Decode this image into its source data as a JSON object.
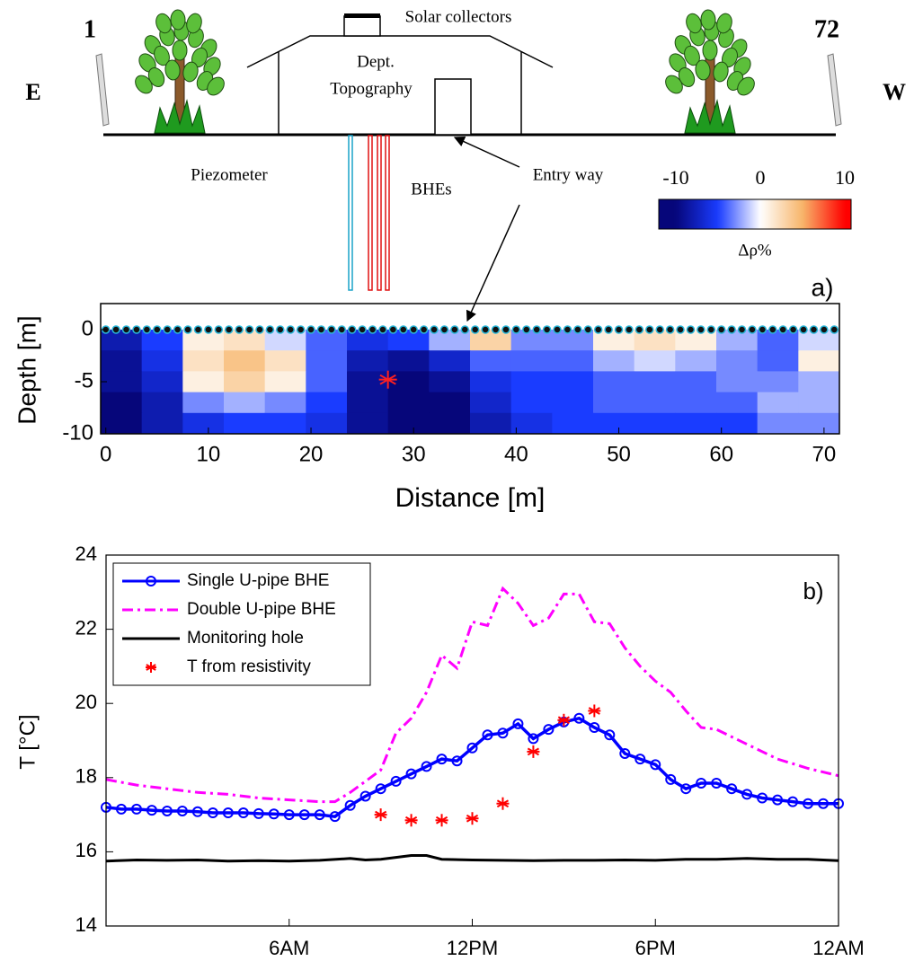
{
  "diagram": {
    "electrodes": [
      1,
      72
    ],
    "directions": [
      "E",
      "W"
    ],
    "solar": "Solar collectors",
    "building": [
      "Dept.",
      "Topography"
    ],
    "piezometer": "Piezometer",
    "bhes": "BHEs",
    "entry": "Entry way"
  },
  "chart_data": [
    {
      "type": "heatmap",
      "panel_label": "a)",
      "xlabel": "Distance [m]",
      "ylabel": "Depth [m]",
      "xlim": [
        -0.5,
        71.5
      ],
      "ylim": [
        -10,
        2.5
      ],
      "xticks": [
        0,
        10,
        20,
        30,
        40,
        50,
        60,
        70
      ],
      "yticks": [
        -10,
        -5,
        0
      ],
      "x_edges": [
        -0.5,
        3.5,
        7.5,
        11.5,
        15.5,
        19.5,
        23.5,
        27.5,
        31.5,
        35.5,
        39.5,
        43.5,
        47.5,
        51.5,
        55.5,
        59.5,
        63.5,
        67.5,
        71.5
      ],
      "y_edges": [
        0,
        -2,
        -4,
        -6,
        -8,
        -10
      ],
      "values": [
        [
          -8,
          -5,
          1,
          2,
          -1,
          -4,
          -6,
          -5,
          -2,
          3,
          -3,
          -3,
          1,
          2,
          1,
          -2,
          -4,
          -1
        ],
        [
          -9,
          -6,
          2,
          4,
          2,
          -4,
          -8,
          -9,
          -7,
          -4,
          -4,
          -4,
          -2,
          -1,
          -2,
          -3,
          -4,
          1
        ],
        [
          -9,
          -7,
          1,
          3,
          1,
          -4,
          -9,
          -10,
          -9,
          -6,
          -5,
          -5,
          -4,
          -4,
          -4,
          -3,
          -3,
          -2
        ],
        [
          -10,
          -8,
          -3,
          -2,
          -3,
          -5,
          -9,
          -10,
          -10,
          -7,
          -5,
          -5,
          -4,
          -4,
          -4,
          -4,
          -2,
          -2
        ],
        [
          -10,
          -8,
          -6,
          -5,
          -5,
          -6,
          -9,
          -10,
          -10,
          -8,
          -6,
          -5,
          -5,
          -5,
          -5,
          -5,
          -3,
          -3
        ]
      ],
      "colorbar": {
        "lim": [
          -10,
          10
        ],
        "ticks": [
          -10,
          0,
          10
        ],
        "label": "Δρ%",
        "colors": [
          "#06067a",
          "#1a3cff",
          "#ffffff",
          "#f7b56a",
          "#ff0000"
        ]
      },
      "marker": {
        "x": 27.5,
        "y": -4.8,
        "color": "#ff2020"
      }
    },
    {
      "type": "line",
      "panel_label": "b)",
      "ylabel": "T [°C]",
      "xlim": [
        0,
        24
      ],
      "ylim": [
        14,
        24
      ],
      "yticks": [
        14,
        16,
        18,
        20,
        22,
        24
      ],
      "xticks": [
        {
          "value": 6,
          "label": "6AM"
        },
        {
          "value": 12,
          "label": "12PM"
        },
        {
          "value": 18,
          "label": "6PM"
        },
        {
          "value": 24,
          "label": "12AM"
        }
      ],
      "series": [
        {
          "name": "Single U-pipe BHE",
          "color": "#0000ff",
          "style": "line-circle",
          "x": [
            0,
            0.5,
            1,
            1.5,
            2,
            2.5,
            3,
            3.5,
            4,
            4.5,
            5,
            5.5,
            6,
            6.5,
            7,
            7.5,
            8,
            8.5,
            9,
            9.5,
            10,
            10.5,
            11,
            11.5,
            12,
            12.5,
            13,
            13.5,
            14,
            14.5,
            15,
            15.5,
            16,
            16.5,
            17,
            17.5,
            18,
            18.5,
            19,
            19.5,
            20,
            20.5,
            21,
            21.5,
            22,
            22.5,
            23,
            23.5,
            24
          ],
          "values": [
            17.2,
            17.15,
            17.15,
            17.12,
            17.1,
            17.1,
            17.08,
            17.05,
            17.05,
            17.05,
            17.03,
            17.02,
            17.0,
            17.0,
            17.0,
            16.95,
            17.25,
            17.5,
            17.7,
            17.9,
            18.1,
            18.3,
            18.5,
            18.45,
            18.8,
            19.15,
            19.2,
            19.45,
            19.05,
            19.3,
            19.5,
            19.6,
            19.35,
            19.15,
            18.65,
            18.5,
            18.35,
            17.95,
            17.7,
            17.85,
            17.85,
            17.7,
            17.55,
            17.45,
            17.4,
            17.35,
            17.3,
            17.3,
            17.3
          ]
        },
        {
          "name": "Double U-pipe BHE",
          "color": "#ff00ff",
          "style": "dash-dot",
          "x": [
            0,
            1,
            2,
            3,
            4,
            5,
            6,
            7,
            7.5,
            8,
            9,
            9.5,
            10,
            10.5,
            11,
            11.5,
            12,
            12.5,
            13,
            13.5,
            14,
            14.5,
            15,
            15.5,
            16,
            16.5,
            17,
            17.5,
            18,
            18.5,
            19,
            19.5,
            20,
            21,
            22,
            23,
            24
          ],
          "values": [
            17.95,
            17.8,
            17.7,
            17.6,
            17.55,
            17.45,
            17.4,
            17.35,
            17.35,
            17.6,
            18.2,
            19.2,
            19.6,
            20.3,
            21.3,
            20.95,
            22.2,
            22.1,
            23.1,
            22.7,
            22.1,
            22.3,
            22.95,
            22.95,
            22.2,
            22.15,
            21.5,
            21.0,
            20.6,
            20.3,
            19.8,
            19.35,
            19.3,
            18.9,
            18.5,
            18.25,
            18.05
          ]
        },
        {
          "name": "Monitoring hole",
          "color": "#000000",
          "style": "line",
          "x": [
            0,
            1,
            2,
            3,
            4,
            5,
            6,
            7,
            8,
            8.5,
            9,
            10,
            10.5,
            11,
            12,
            13,
            14,
            15,
            16,
            17,
            18,
            19,
            20,
            21,
            22,
            23,
            24
          ],
          "values": [
            15.75,
            15.78,
            15.77,
            15.78,
            15.75,
            15.76,
            15.75,
            15.77,
            15.82,
            15.78,
            15.8,
            15.9,
            15.9,
            15.8,
            15.78,
            15.77,
            15.76,
            15.77,
            15.77,
            15.78,
            15.77,
            15.8,
            15.8,
            15.82,
            15.8,
            15.8,
            15.76
          ]
        },
        {
          "name": "T from resistivity",
          "color": "#ff0000",
          "style": "star",
          "x": [
            9,
            10,
            11,
            12,
            13,
            14,
            15,
            16
          ],
          "values": [
            17.0,
            16.85,
            16.85,
            16.9,
            17.3,
            18.7,
            19.55,
            19.8
          ]
        }
      ]
    }
  ]
}
